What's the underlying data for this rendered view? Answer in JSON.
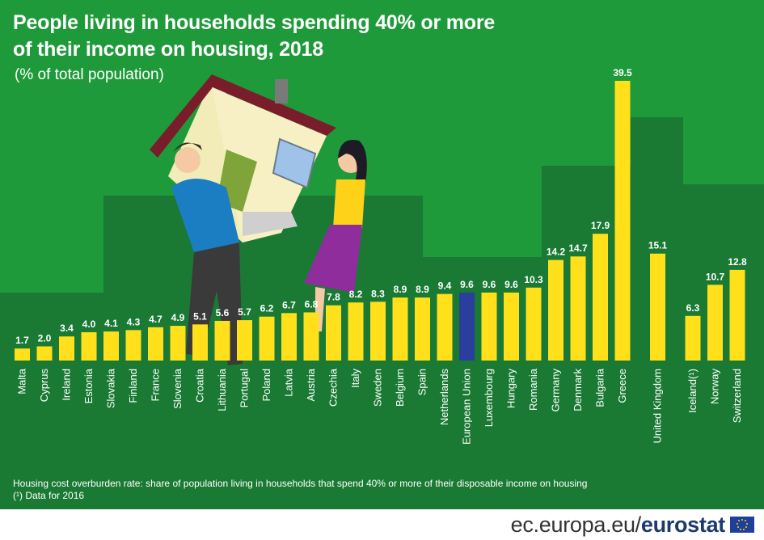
{
  "title_line1": "People living in households spending 40% or more",
  "title_line2": "of their income on housing, 2018",
  "subtitle": "(% of total population)",
  "footnote_line1": "Housing cost overburden rate: share of population living in households that spend 40% or more of their disposable income on housing",
  "footnote_line2": "(¹) Data for 2016",
  "footer": {
    "domain": "ec.europa.eu/",
    "brand": "eurostat"
  },
  "colors": {
    "background": "#1f9a3a",
    "bar": "#ffe01b",
    "highlight": "#2a3f9d",
    "backdrop": "#1a7a34"
  },
  "chart_data": {
    "type": "bar",
    "title": "People living in households spending 40% or more of their income on housing, 2018",
    "ylabel": "",
    "ylim": [
      0,
      40
    ],
    "grid": false,
    "categories": [
      "Malta",
      "Cyprus",
      "Ireland",
      "Estonia",
      "Slovakia",
      "Finland",
      "France",
      "Slovenia",
      "Croatia",
      "Lithuania",
      "Portugal",
      "Poland",
      "Latvia",
      "Austria",
      "Czechia",
      "Italy",
      "Sweden",
      "Belgium",
      "Spain",
      "Netherlands",
      "European Union",
      "Luxembourg",
      "Hungary",
      "Romania",
      "Germany",
      "Denmark",
      "Bulgaria",
      "Greece",
      "United Kingdom",
      "Iceland(¹)",
      "Norway",
      "Switzerland"
    ],
    "values": [
      1.7,
      2.0,
      3.4,
      4.0,
      4.1,
      4.3,
      4.7,
      4.9,
      5.1,
      5.6,
      5.7,
      6.2,
      6.7,
      6.8,
      7.8,
      8.2,
      8.3,
      8.9,
      8.9,
      9.4,
      9.6,
      9.6,
      9.6,
      10.3,
      14.2,
      14.7,
      17.9,
      39.5,
      15.1,
      6.3,
      10.7,
      12.8
    ],
    "value_labels": [
      "1.7",
      "2.0",
      "3.4",
      "4.0",
      "4.1",
      "4.3",
      "4.7",
      "4.9",
      "5.1",
      "5.6",
      "5.7",
      "6.2",
      "6.7",
      "6.8",
      "7.8",
      "8.2",
      "8.3",
      "8.9",
      "8.9",
      "9.4",
      "9.6",
      "9.6",
      "9.6",
      "10.3",
      "14.2",
      "14.7",
      "17.9",
      "39.5",
      "15.1",
      "6.3",
      "10.7",
      "12.8"
    ],
    "highlight": "European Union"
  }
}
